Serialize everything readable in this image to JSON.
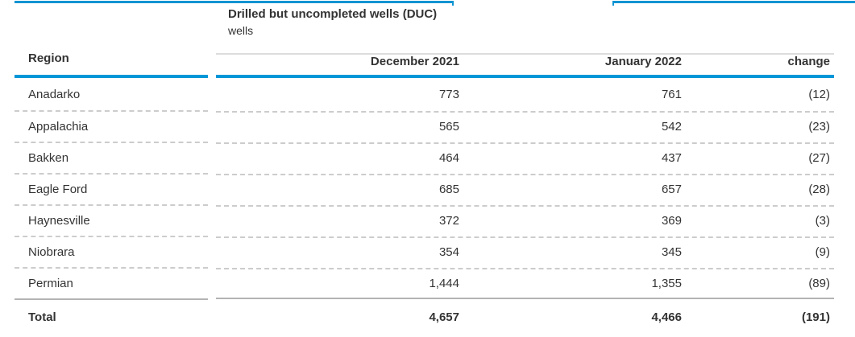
{
  "decoration": {
    "accent_blue": "#0096d7",
    "top_border_note": "two cropped blue panel borders at top of viewport"
  },
  "table": {
    "title": "Drilled but uncompleted wells (DUC)",
    "subtitle": "wells",
    "columns": [
      "Region",
      "December 2021",
      "January 2022",
      "change"
    ],
    "rows": [
      {
        "region": "Anadarko",
        "dec_2021": "773",
        "jan_2022": "761",
        "change": "(12)"
      },
      {
        "region": "Appalachia",
        "dec_2021": "565",
        "jan_2022": "542",
        "change": "(23)"
      },
      {
        "region": "Bakken",
        "dec_2021": "464",
        "jan_2022": "437",
        "change": "(27)"
      },
      {
        "region": "Eagle Ford",
        "dec_2021": "685",
        "jan_2022": "657",
        "change": "(28)"
      },
      {
        "region": "Haynesville",
        "dec_2021": "372",
        "jan_2022": "369",
        "change": "(3)"
      },
      {
        "region": "Niobrara",
        "dec_2021": "354",
        "jan_2022": "345",
        "change": "(9)"
      },
      {
        "region": "Permian",
        "dec_2021": "1,444",
        "jan_2022": "1,355",
        "change": "(89)"
      }
    ],
    "total_row": {
      "region": "Total",
      "dec_2021": "4,657",
      "jan_2022": "4,466",
      "change": "(191)"
    }
  },
  "chart_data": {
    "type": "table",
    "title": "Drilled but uncompleted wells (DUC)",
    "unit": "wells",
    "columns": [
      "Region",
      "December 2021",
      "January 2022",
      "change"
    ],
    "rows": [
      [
        "Anadarko",
        773,
        761,
        -12
      ],
      [
        "Appalachia",
        565,
        542,
        -23
      ],
      [
        "Bakken",
        464,
        437,
        -27
      ],
      [
        "Eagle Ford",
        685,
        657,
        -28
      ],
      [
        "Haynesville",
        372,
        369,
        -3
      ],
      [
        "Niobrara",
        354,
        345,
        -9
      ],
      [
        "Permian",
        1444,
        1355,
        -89
      ]
    ],
    "total": [
      "Total",
      4657,
      4466,
      -191
    ],
    "notes": "negative changes displayed in parentheses"
  }
}
